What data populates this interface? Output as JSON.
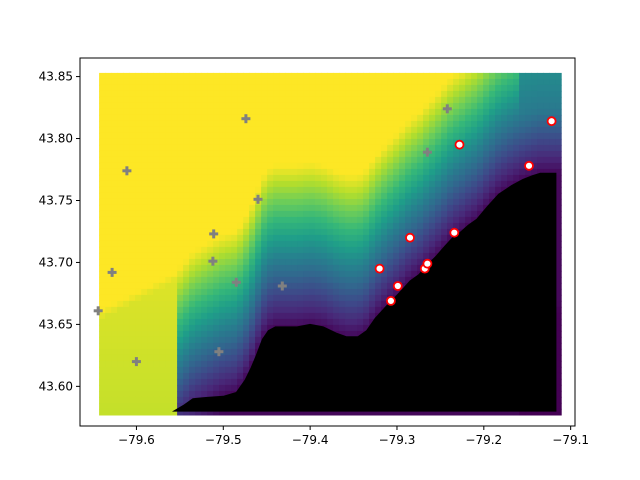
{
  "chart_data": {
    "type": "scatter",
    "title": "",
    "xlabel": "",
    "ylabel": "",
    "xlim": [
      -79.665,
      -79.095
    ],
    "ylim": [
      43.568,
      43.865
    ],
    "grid": false,
    "x_ticks": [
      -79.6,
      -79.5,
      -79.4,
      -79.3,
      -79.2,
      -79.1
    ],
    "x_tick_labels": [
      "−79.6",
      "−79.5",
      "−79.4",
      "−79.3",
      "−79.2",
      "−79.1"
    ],
    "y_ticks": [
      43.6,
      43.65,
      43.7,
      43.75,
      43.8,
      43.85
    ],
    "y_tick_labels": [
      "43.60",
      "43.65",
      "43.70",
      "43.75",
      "43.80",
      "43.85"
    ],
    "background_field": {
      "x_range": [
        -79.643,
        -79.117
      ],
      "y_range": [
        43.58,
        43.853
      ],
      "colormap": "viridis",
      "masked_color": "#000000"
    },
    "lake_shoreline": {
      "x": [
        -79.557,
        -79.545,
        -79.535,
        -79.52,
        -79.5,
        -79.485,
        -79.475,
        -79.468,
        -79.462,
        -79.455,
        -79.448,
        -79.44,
        -79.43,
        -79.415,
        -79.4,
        -79.385,
        -79.37,
        -79.358,
        -79.345,
        -79.335,
        -79.325,
        -79.312,
        -79.302,
        -79.294,
        -79.285,
        -79.275,
        -79.265,
        -79.255,
        -79.245,
        -79.236,
        -79.226,
        -79.218,
        -79.208,
        -79.196,
        -79.183,
        -79.168,
        -79.155,
        -79.144,
        -79.135,
        -79.125,
        -79.117
      ],
      "y": [
        43.58,
        43.585,
        43.59,
        43.591,
        43.592,
        43.595,
        43.605,
        43.615,
        43.625,
        43.638,
        43.645,
        43.648,
        43.648,
        43.648,
        43.65,
        43.648,
        43.643,
        43.64,
        43.64,
        43.645,
        43.655,
        43.665,
        43.672,
        43.678,
        43.685,
        43.69,
        43.698,
        43.705,
        43.713,
        43.72,
        43.725,
        43.73,
        43.735,
        43.745,
        43.755,
        43.762,
        43.767,
        43.77,
        43.772,
        43.772,
        43.772
      ]
    },
    "series": [
      {
        "marker": "plus",
        "color": "#808080",
        "points": [
          {
            "x": -79.644,
            "y": 43.661
          },
          {
            "x": -79.628,
            "y": 43.692
          },
          {
            "x": -79.611,
            "y": 43.774
          },
          {
            "x": -79.6,
            "y": 43.62
          },
          {
            "x": -79.511,
            "y": 43.723
          },
          {
            "x": -79.512,
            "y": 43.701
          },
          {
            "x": -79.505,
            "y": 43.628
          },
          {
            "x": -79.485,
            "y": 43.684
          },
          {
            "x": -79.474,
            "y": 43.816
          },
          {
            "x": -79.46,
            "y": 43.751
          },
          {
            "x": -79.432,
            "y": 43.681
          },
          {
            "x": -79.265,
            "y": 43.789
          },
          {
            "x": -79.242,
            "y": 43.824
          }
        ]
      },
      {
        "marker": "circle",
        "color": "#ff0000",
        "points": [
          {
            "x": -79.32,
            "y": 43.695
          },
          {
            "x": -79.307,
            "y": 43.669
          },
          {
            "x": -79.299,
            "y": 43.681
          },
          {
            "x": -79.285,
            "y": 43.72
          },
          {
            "x": -79.268,
            "y": 43.695
          },
          {
            "x": -79.265,
            "y": 43.699
          },
          {
            "x": -79.234,
            "y": 43.724
          },
          {
            "x": -79.228,
            "y": 43.795
          },
          {
            "x": -79.148,
            "y": 43.778
          },
          {
            "x": -79.122,
            "y": 43.814
          }
        ]
      }
    ]
  }
}
